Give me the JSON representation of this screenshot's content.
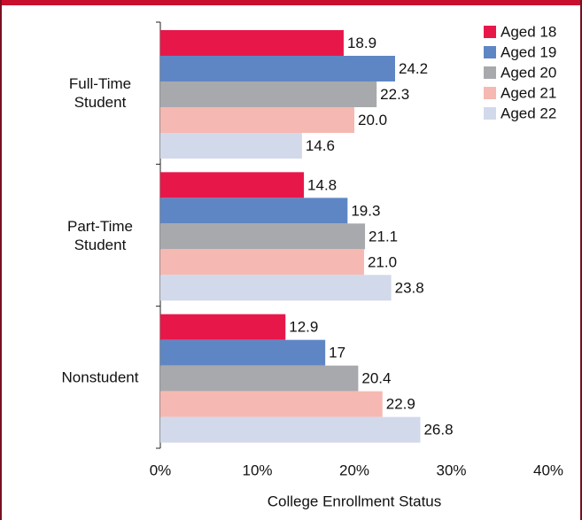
{
  "chart_data": {
    "type": "barh",
    "categories": [
      "Full-Time Student",
      "Part-Time Student",
      "Nonstudent"
    ],
    "series": [
      {
        "name": "Aged 18",
        "color": "#e8174a",
        "values": [
          18.9,
          14.8,
          12.9
        ]
      },
      {
        "name": "Aged 19",
        "color": "#5f86c4",
        "values": [
          24.2,
          19.3,
          17.0
        ]
      },
      {
        "name": "Aged 20",
        "color": "#a8a9ad",
        "values": [
          22.3,
          21.1,
          20.4
        ],
        "value_labels": [
          "22.3",
          "21.1",
          "20.4"
        ]
      },
      {
        "name": "Aged 21",
        "color": "#f6b8b2",
        "values": [
          20.0,
          21.0,
          22.9
        ],
        "value_labels": [
          "20.0",
          "21.0",
          "22.9"
        ]
      },
      {
        "name": "Aged 22",
        "color": "#d2d9eb",
        "values": [
          14.6,
          23.8,
          26.8
        ],
        "value_labels": [
          "14.6",
          "23.8",
          "26.8"
        ]
      }
    ],
    "xlabel": "College Enrollment Status",
    "xlim": [
      0,
      40
    ],
    "xticks": [
      {
        "value": 0,
        "label": "0%"
      },
      {
        "value": 10,
        "label": "10%"
      },
      {
        "value": 20,
        "label": "20%"
      },
      {
        "value": 30,
        "label": "30%"
      },
      {
        "value": 40,
        "label": "40%"
      }
    ],
    "legend": "upper right"
  }
}
